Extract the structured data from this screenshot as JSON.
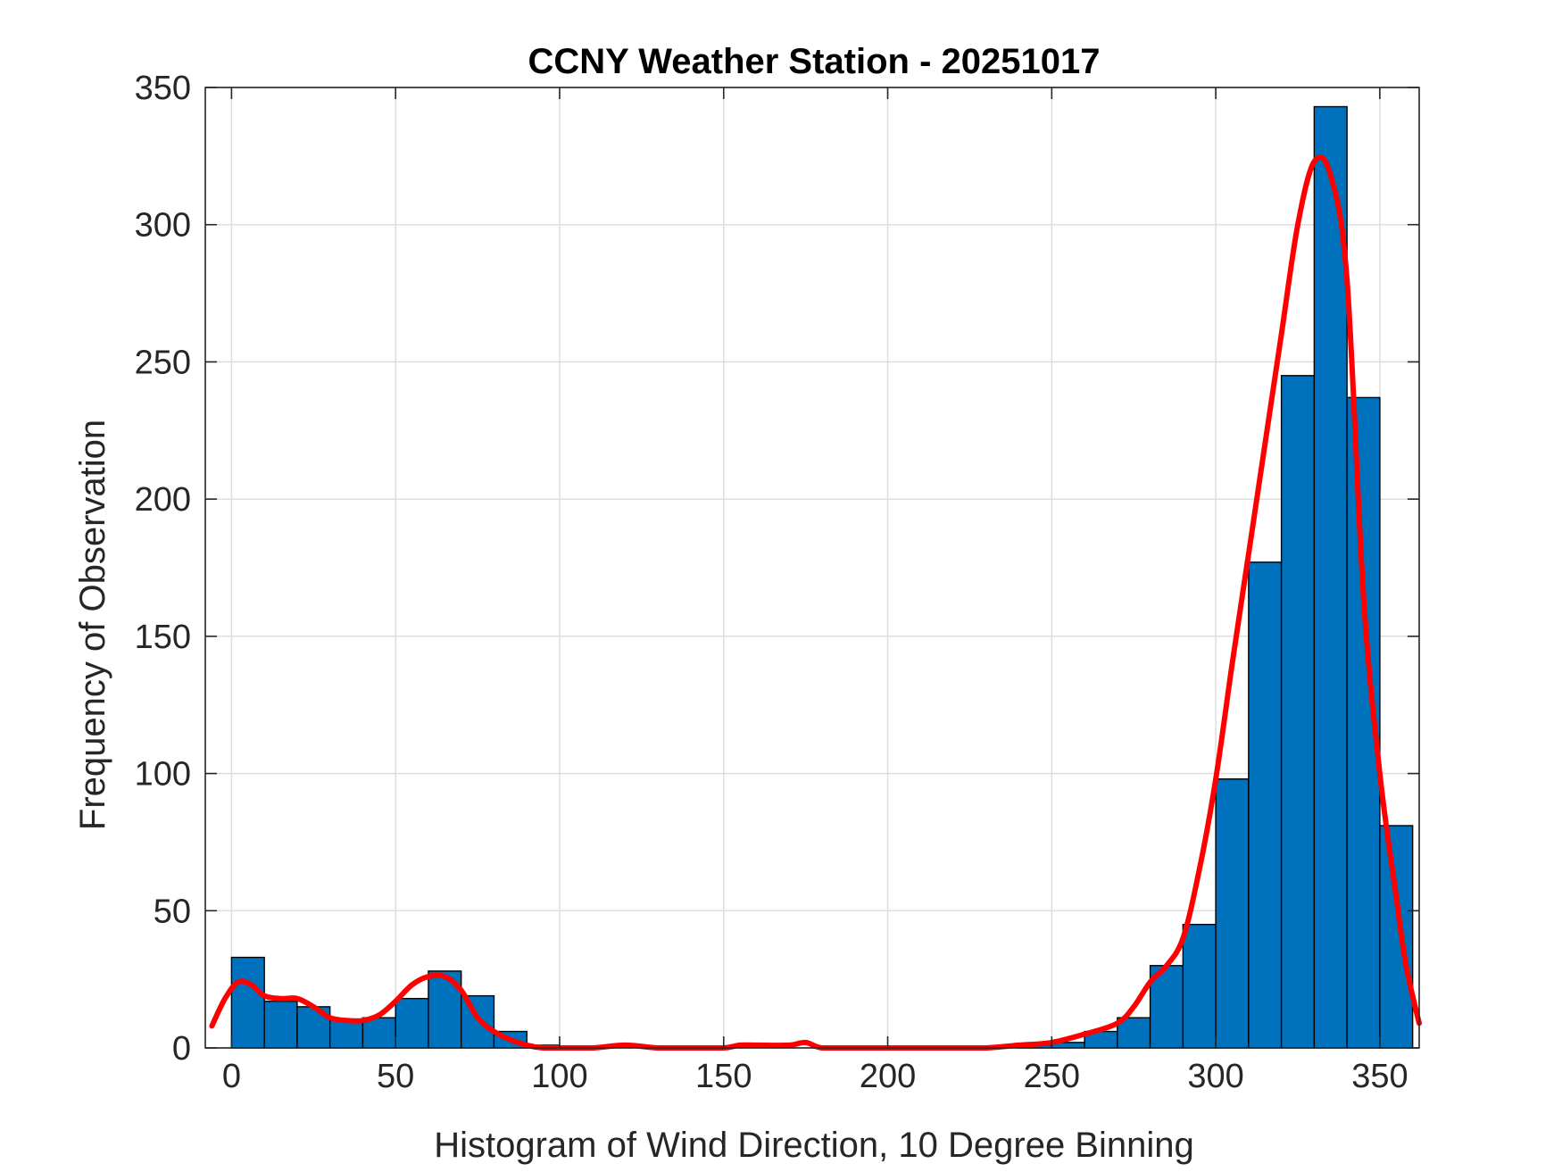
{
  "figure": {
    "title": "CCNY Weather Station - 20251017",
    "xlabel": "Histogram of Wind Direction, 10 Degree Binning",
    "ylabel": "Frequency of Observation"
  },
  "chart_data": {
    "type": "bar",
    "title": "CCNY Weather Station - 20251017",
    "xlabel": "Histogram of Wind Direction, 10 Degree Binning",
    "ylabel": "Frequency of Observation",
    "xlim": [
      -8,
      362
    ],
    "ylim": [
      0,
      350
    ],
    "grid": true,
    "xticks": [
      0,
      50,
      100,
      150,
      200,
      250,
      300,
      350
    ],
    "yticks": [
      0,
      50,
      100,
      150,
      200,
      250,
      300,
      350
    ],
    "bin_width": 10,
    "bins": [
      {
        "start": 0,
        "count": 33
      },
      {
        "start": 10,
        "count": 17
      },
      {
        "start": 20,
        "count": 15
      },
      {
        "start": 30,
        "count": 10
      },
      {
        "start": 40,
        "count": 11
      },
      {
        "start": 50,
        "count": 18
      },
      {
        "start": 60,
        "count": 28
      },
      {
        "start": 70,
        "count": 19
      },
      {
        "start": 80,
        "count": 6
      },
      {
        "start": 90,
        "count": 1
      },
      {
        "start": 100,
        "count": 0
      },
      {
        "start": 110,
        "count": 0
      },
      {
        "start": 120,
        "count": 0
      },
      {
        "start": 130,
        "count": 0
      },
      {
        "start": 140,
        "count": 0
      },
      {
        "start": 150,
        "count": 0
      },
      {
        "start": 160,
        "count": 0
      },
      {
        "start": 170,
        "count": 0
      },
      {
        "start": 180,
        "count": 0
      },
      {
        "start": 190,
        "count": 0
      },
      {
        "start": 200,
        "count": 0
      },
      {
        "start": 210,
        "count": 0
      },
      {
        "start": 220,
        "count": 0
      },
      {
        "start": 230,
        "count": 0
      },
      {
        "start": 240,
        "count": 1
      },
      {
        "start": 250,
        "count": 2
      },
      {
        "start": 260,
        "count": 6
      },
      {
        "start": 270,
        "count": 11
      },
      {
        "start": 280,
        "count": 30
      },
      {
        "start": 290,
        "count": 45
      },
      {
        "start": 300,
        "count": 98
      },
      {
        "start": 310,
        "count": 177
      },
      {
        "start": 320,
        "count": 245
      },
      {
        "start": 330,
        "count": 343
      },
      {
        "start": 340,
        "count": 237
      },
      {
        "start": 350,
        "count": 81
      }
    ],
    "curve": {
      "x": [
        -6,
        -2,
        2,
        6,
        10,
        15,
        20,
        25,
        30,
        35,
        40,
        45,
        50,
        55,
        60,
        65,
        70,
        75,
        80,
        85,
        90,
        95,
        100,
        110,
        120,
        130,
        140,
        150,
        155,
        160,
        170,
        175,
        180,
        190,
        200,
        210,
        220,
        230,
        240,
        250,
        260,
        270,
        275,
        280,
        285,
        290,
        295,
        300,
        305,
        310,
        315,
        320,
        325,
        330,
        335,
        340,
        345,
        350,
        355,
        358,
        362
      ],
      "y": [
        8,
        18,
        24,
        23,
        19,
        18,
        18,
        15,
        11,
        10,
        10,
        12,
        17,
        23,
        26,
        26,
        21,
        11,
        6,
        3,
        1,
        0,
        0,
        0,
        1,
        0,
        0,
        0,
        1,
        1,
        1,
        2,
        0,
        0,
        0,
        0,
        0,
        0,
        1,
        2,
        5,
        9,
        15,
        24,
        30,
        40,
        65,
        98,
        140,
        180,
        220,
        260,
        300,
        323,
        318,
        280,
        165,
        100,
        55,
        30,
        9
      ]
    },
    "colors": {
      "bar_fill": "#0072bd",
      "bar_edge": "#000000",
      "curve": "#ff0000",
      "grid": "#dcdcdc",
      "axes": "#262626"
    }
  }
}
